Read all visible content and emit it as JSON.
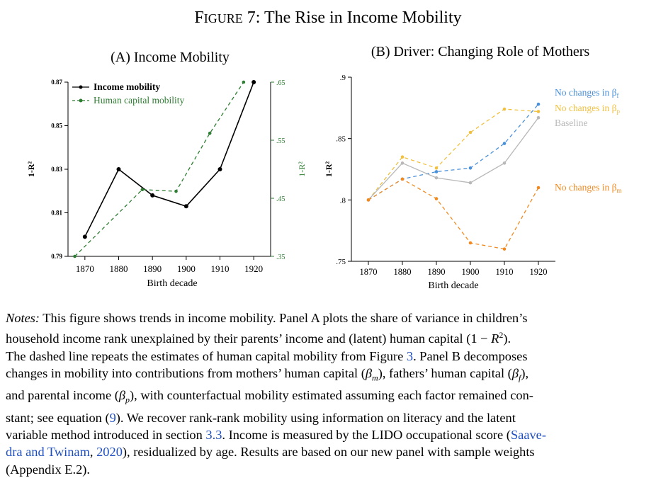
{
  "figure_title_prefix": "F",
  "figure_title_smallcaps": "IGURE",
  "figure_title_rest": " 7: The Rise in Income Mobility",
  "panel_a_title": "(A) Income Mobility",
  "panel_b_title": "(B) Driver: Changing Role of Mothers",
  "chart_data": [
    {
      "type": "line",
      "title": "(A) Income Mobility",
      "xlabel": "Birth decade",
      "ylabel": "1-R²",
      "y2label": "1-R²",
      "x_ticks": [
        1870,
        1880,
        1890,
        1900,
        1910,
        1920
      ],
      "y_ticks": [
        "0.79",
        "0.81",
        "0.83",
        "0.85",
        "0.87"
      ],
      "y2_ticks": [
        ".35",
        ".45",
        ".55",
        ".65"
      ],
      "ylim": [
        0.79,
        0.87
      ],
      "y2lim": [
        0.35,
        0.65
      ],
      "legend_position": "top-left",
      "series": [
        {
          "name": "Income mobility",
          "axis": "left",
          "color": "#000000",
          "dashed": false,
          "x": [
            1870,
            1880,
            1890,
            1900,
            1910,
            1920
          ],
          "y": [
            0.799,
            0.83,
            0.818,
            0.813,
            0.83,
            0.87
          ]
        },
        {
          "name": "Human capital mobility",
          "axis": "right",
          "color": "#2e7d32",
          "dashed": true,
          "x": [
            1867,
            1887,
            1897,
            1907,
            1917
          ],
          "y": [
            0.35,
            0.465,
            0.462,
            0.562,
            0.65
          ]
        }
      ]
    },
    {
      "type": "line",
      "title": "(B) Driver: Changing Role of Mothers",
      "xlabel": "Birth decade",
      "ylabel": "1-R²",
      "x_ticks": [
        1870,
        1880,
        1890,
        1900,
        1910,
        1920
      ],
      "y_ticks": [
        ".75",
        ".8",
        ".85",
        ".9"
      ],
      "ylim": [
        0.75,
        0.9
      ],
      "series": [
        {
          "name": "No changes in β",
          "subscript": "f",
          "color": "#4a90d9",
          "dashed": true,
          "x": [
            1870,
            1880,
            1890,
            1900,
            1910,
            1920
          ],
          "y": [
            0.8,
            0.817,
            0.823,
            0.826,
            0.846,
            0.878
          ]
        },
        {
          "name": "No changes in β",
          "subscript": "p",
          "color": "#f0c040",
          "dashed": true,
          "x": [
            1870,
            1880,
            1890,
            1900,
            1910,
            1920
          ],
          "y": [
            0.8,
            0.835,
            0.826,
            0.855,
            0.874,
            0.872
          ]
        },
        {
          "name": "Baseline",
          "color": "#b8b8b8",
          "dashed": false,
          "x": [
            1870,
            1880,
            1890,
            1900,
            1910,
            1920
          ],
          "y": [
            0.8,
            0.83,
            0.818,
            0.814,
            0.83,
            0.867
          ]
        },
        {
          "name": "No changes in β",
          "subscript": "m",
          "color": "#f08a20",
          "dashed": true,
          "x": [
            1870,
            1880,
            1890,
            1900,
            1910,
            1920
          ],
          "y": [
            0.8,
            0.817,
            0.801,
            0.765,
            0.76,
            0.81
          ]
        }
      ]
    }
  ],
  "notes": {
    "label": "Notes:",
    "l1": " This figure shows trends in income mobility. Panel A plots the share of variance in children’s",
    "l2a": "household income rank unexplained by their parents’ income and (latent) human capital (1 − ",
    "l2b": "R",
    "l2c": "2",
    "l2d": ").",
    "l3a": "The dashed line repeats the estimates of human capital mobility from Figure ",
    "l3b": "3",
    "l3c": ". Panel B decomposes",
    "l4a": "changes in mobility into contributions from mothers’ human capital (",
    "l4b": "β",
    "l4c": "m",
    "l4d": "), fathers’ human capital (",
    "l4e": "β",
    "l4f": "f",
    "l4g": "),",
    "l5a": "and parental income (",
    "l5b": "β",
    "l5c": "p",
    "l5d": "), with counterfactual mobility estimated assuming each factor remained con-",
    "l6a": "stant; see equation (",
    "l6b": "9",
    "l6c": "). We recover rank-rank mobility using information on literacy and the latent",
    "l7a": "variable method introduced in section ",
    "l7b": "3.3",
    "l7c": ". Income is measured by the LIDO occupational score (",
    "l7d": "Saave-",
    "l8a": "dra and Twinam",
    "l8b": ", ",
    "l8c": "2020",
    "l8d": "), residualized by age. Results are based on our new panel with sample weights",
    "l9": "(Appendix E.2)."
  }
}
